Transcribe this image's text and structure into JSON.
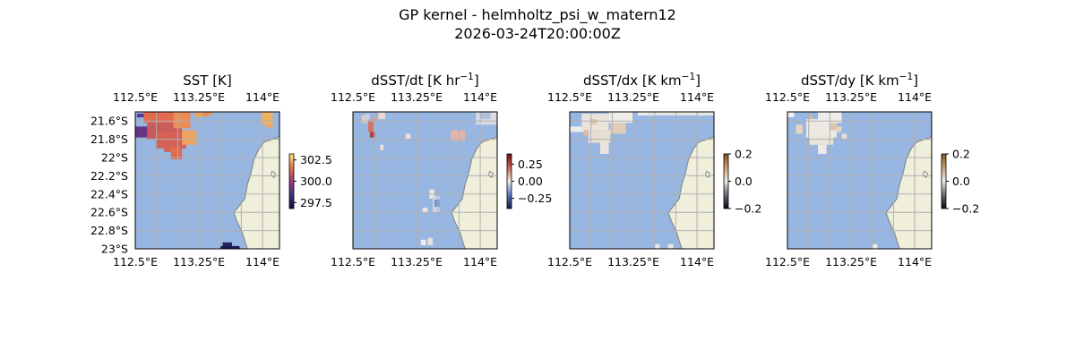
{
  "figure": {
    "title": "GP kernel - helmholtz_psi_w_matern12",
    "subtitle": "2026-03-24T20:00:00Z"
  },
  "colors": {
    "ocean": "#97b6e1",
    "land": "#efefdb",
    "coast": "#8a8a8a",
    "grid": "#b0b0b0"
  },
  "chart_data": [
    {
      "type": "heatmap",
      "title_text": "SST [K]",
      "title_sup": "",
      "title_suffix": "",
      "x_ticks_top": [
        "112.5°E",
        "113.25°E",
        "114°E"
      ],
      "x_ticks_bottom": [
        "112.5°E",
        "113.25°E",
        "114°E"
      ],
      "y_ticks": [
        "21.6°S",
        "21.8°S",
        "22°S",
        "22.2°S",
        "22.4°S",
        "22.6°S",
        "22.8°S",
        "23°S"
      ],
      "xlim": [
        112.5,
        114.2
      ],
      "ylim": [
        -23.0,
        -21.5
      ],
      "colorbar": {
        "colormap": "thermal",
        "ticks": [
          "302.5",
          "300.0",
          "297.5"
        ],
        "range": [
          296.8,
          303.2
        ],
        "tick_values": [
          302.5,
          300.0,
          297.5
        ]
      },
      "patches": [
        {
          "lon": [
            112.52,
            112.64
          ],
          "lat": [
            -21.52,
            -21.56
          ],
          "value": 298.8
        },
        {
          "lon": [
            112.5,
            112.72
          ],
          "lat": [
            -21.66,
            -21.78
          ],
          "value": 299.0
        },
        {
          "lon": [
            112.6,
            112.95
          ],
          "lat": [
            -21.5,
            -21.62
          ],
          "value": 301.5
        },
        {
          "lon": [
            112.64,
            113.05
          ],
          "lat": [
            -21.62,
            -21.8
          ],
          "value": 301.0
        },
        {
          "lon": [
            112.74,
            113.1
          ],
          "lat": [
            -21.72,
            -21.9
          ],
          "value": 301.2
        },
        {
          "lon": [
            112.95,
            113.15
          ],
          "lat": [
            -21.5,
            -21.68
          ],
          "value": 302.0
        },
        {
          "lon": [
            113.05,
            113.22
          ],
          "lat": [
            -21.7,
            -21.86
          ],
          "value": 302.3
        },
        {
          "lon": [
            112.92,
            113.05
          ],
          "lat": [
            -21.88,
            -22.02
          ],
          "value": 301.5
        },
        {
          "lon": [
            112.84,
            112.92
          ],
          "lat": [
            -21.86,
            -21.94
          ],
          "value": 301.2
        },
        {
          "lon": [
            113.2,
            113.3
          ],
          "lat": [
            -21.5,
            -21.56
          ],
          "value": 302.3
        },
        {
          "lon": [
            113.3,
            113.36
          ],
          "lat": [
            -21.5,
            -21.55
          ],
          "value": 302.0
        },
        {
          "lon": [
            113.36,
            113.41
          ],
          "lat": [
            -21.5,
            -21.54
          ],
          "value": 302.1
        },
        {
          "lon": [
            113.98,
            114.12
          ],
          "lat": [
            -21.5,
            -21.64
          ],
          "value": 302.5
        },
        {
          "lon": [
            114.05,
            114.12
          ],
          "lat": [
            -21.64,
            -21.68
          ],
          "value": 302.3
        },
        {
          "lon": [
            113.53,
            113.64
          ],
          "lat": [
            -22.93,
            -22.99
          ],
          "value": 297.5
        },
        {
          "lon": [
            113.5,
            113.73
          ],
          "lat": [
            -22.97,
            -23.0
          ],
          "value": 297.2
        }
      ]
    },
    {
      "type": "heatmap",
      "title_text": "dSST/dt [K hr",
      "title_sup": "−1",
      "title_suffix": "]",
      "x_ticks_top": [
        "112.5°E",
        "113.25°E",
        "114°E"
      ],
      "x_ticks_bottom": [
        "112.5°E",
        "113.25°E",
        "114°E"
      ],
      "y_ticks": [],
      "xlim": [
        112.5,
        114.2
      ],
      "ylim": [
        -23.0,
        -21.5
      ],
      "colorbar": {
        "colormap": "balance",
        "ticks": [
          "0.25",
          "0.00",
          "−0.25"
        ],
        "range": [
          -0.4,
          0.4
        ],
        "tick_values": [
          0.25,
          0.0,
          -0.25
        ]
      },
      "patches": [
        {
          "lon": [
            112.6,
            112.68
          ],
          "lat": [
            -21.54,
            -21.62
          ],
          "value": 0.05
        },
        {
          "lon": [
            112.68,
            112.74
          ],
          "lat": [
            -21.6,
            -21.72
          ],
          "value": 0.18
        },
        {
          "lon": [
            112.7,
            112.76
          ],
          "lat": [
            -21.72,
            -21.78
          ],
          "value": 0.28
        },
        {
          "lon": [
            112.8,
            112.88
          ],
          "lat": [
            -21.5,
            -21.58
          ],
          "value": 0.03
        },
        {
          "lon": [
            112.64,
            112.7
          ],
          "lat": [
            -21.52,
            -21.58
          ],
          "value": -0.05
        },
        {
          "lon": [
            112.72,
            112.78
          ],
          "lat": [
            -21.56,
            -21.6
          ],
          "value": 0.12
        },
        {
          "lon": [
            112.82,
            112.86
          ],
          "lat": [
            -21.86,
            -21.92
          ],
          "value": 0.02
        },
        {
          "lon": [
            113.12,
            113.18
          ],
          "lat": [
            -21.74,
            -21.8
          ],
          "value": 0.02
        },
        {
          "lon": [
            113.65,
            113.82
          ],
          "lat": [
            -21.7,
            -21.82
          ],
          "value": 0.08
        },
        {
          "lon": [
            113.95,
            114.2
          ],
          "lat": [
            -21.5,
            -21.64
          ],
          "value": -0.03
        },
        {
          "lon": [
            114.0,
            114.12
          ],
          "lat": [
            -21.5,
            -21.58
          ],
          "value": -0.08
        },
        {
          "lon": [
            113.4,
            113.46
          ],
          "lat": [
            -22.35,
            -22.45
          ],
          "value": 0.01
        },
        {
          "lon": [
            113.44,
            113.52
          ],
          "lat": [
            -22.42,
            -22.6
          ],
          "value": -0.04
        },
        {
          "lon": [
            113.46,
            113.52
          ],
          "lat": [
            -22.46,
            -22.54
          ],
          "value": -0.15
        },
        {
          "lon": [
            113.32,
            113.38
          ],
          "lat": [
            -22.55,
            -22.6
          ],
          "value": 0.01
        },
        {
          "lon": [
            113.38,
            113.44
          ],
          "lat": [
            -22.88,
            -22.96
          ],
          "value": 0.02
        },
        {
          "lon": [
            113.3,
            113.36
          ],
          "lat": [
            -22.9,
            -22.96
          ],
          "value": 0.0
        }
      ]
    },
    {
      "type": "heatmap",
      "title_text": "dSST/dx [K km",
      "title_sup": "−1",
      "title_suffix": "]",
      "x_ticks_top": [
        "112.5°E",
        "113.25°E",
        "114°E"
      ],
      "x_ticks_bottom": [
        "112.5°E",
        "113.25°E",
        "114°E"
      ],
      "y_ticks": [],
      "xlim": [
        112.5,
        114.2
      ],
      "ylim": [
        -23.0,
        -21.5
      ],
      "colorbar": {
        "colormap": "gray-copper",
        "ticks": [
          "0.2",
          "0.0",
          "−0.2"
        ],
        "range": [
          -0.2,
          0.2
        ],
        "tick_values": [
          0.2,
          0.0,
          -0.2
        ]
      },
      "patches": [
        {
          "lon": [
            112.5,
            112.68
          ],
          "lat": [
            -21.66,
            -21.72
          ],
          "value": 0.0
        },
        {
          "lon": [
            112.64,
            112.96
          ],
          "lat": [
            -21.52,
            -21.7
          ],
          "value": 0.01
        },
        {
          "lon": [
            112.72,
            112.98
          ],
          "lat": [
            -21.7,
            -21.84
          ],
          "value": 0.02
        },
        {
          "lon": [
            112.96,
            113.24
          ],
          "lat": [
            -21.5,
            -21.62
          ],
          "value": 0.0
        },
        {
          "lon": [
            112.98,
            113.16
          ],
          "lat": [
            -21.62,
            -21.74
          ],
          "value": 0.04
        },
        {
          "lon": [
            112.86,
            112.96
          ],
          "lat": [
            -21.82,
            -21.96
          ],
          "value": 0.01
        },
        {
          "lon": [
            112.74,
            112.82
          ],
          "lat": [
            -21.58,
            -21.64
          ],
          "value": 0.05
        },
        {
          "lon": [
            112.66,
            112.72
          ],
          "lat": [
            -21.7,
            -21.76
          ],
          "value": 0.06
        },
        {
          "lon": [
            113.3,
            113.42
          ],
          "lat": [
            -21.5,
            -21.54
          ],
          "value": 0.0
        },
        {
          "lon": [
            113.4,
            114.2
          ],
          "lat": [
            -21.5,
            -21.54
          ],
          "value": -0.005
        },
        {
          "lon": [
            113.5,
            113.56
          ],
          "lat": [
            -22.95,
            -23.0
          ],
          "value": 0.0
        },
        {
          "lon": [
            113.66,
            113.72
          ],
          "lat": [
            -22.95,
            -23.0
          ],
          "value": 0.0
        }
      ]
    },
    {
      "type": "heatmap",
      "title_text": "dSST/dy [K km",
      "title_sup": "−1",
      "title_suffix": "]",
      "x_ticks_top": [
        "112.5°E",
        "113.25°E",
        "114°E"
      ],
      "x_ticks_bottom": [
        "112.5°E",
        "113.25°E",
        "114°E"
      ],
      "y_ticks": [],
      "xlim": [
        112.5,
        114.2
      ],
      "ylim": [
        -23.0,
        -21.5
      ],
      "colorbar": {
        "colormap": "gray-copper",
        "ticks": [
          "0.2",
          "0.0",
          "−0.2"
        ],
        "range": [
          -0.2,
          0.2
        ],
        "tick_values": [
          0.2,
          0.0,
          -0.2
        ]
      },
      "patches": [
        {
          "lon": [
            112.5,
            112.58
          ],
          "lat": [
            -21.5,
            -21.56
          ],
          "value": 0.0
        },
        {
          "lon": [
            112.6,
            112.68
          ],
          "lat": [
            -21.64,
            -21.74
          ],
          "value": 0.03
        },
        {
          "lon": [
            112.72,
            113.08
          ],
          "lat": [
            -21.58,
            -21.78
          ],
          "value": 0.005
        },
        {
          "lon": [
            112.86,
            113.14
          ],
          "lat": [
            -21.5,
            -21.62
          ],
          "value": 0.0
        },
        {
          "lon": [
            112.76,
            113.04
          ],
          "lat": [
            -21.78,
            -21.86
          ],
          "value": 0.01
        },
        {
          "lon": [
            112.86,
            112.96
          ],
          "lat": [
            -21.86,
            -21.96
          ],
          "value": 0.0
        },
        {
          "lon": [
            113.0,
            113.08
          ],
          "lat": [
            -21.62,
            -21.7
          ],
          "value": 0.05
        },
        {
          "lon": [
            112.76,
            112.8
          ],
          "lat": [
            -21.54,
            -21.58
          ],
          "value": 0.07
        },
        {
          "lon": [
            113.08,
            113.14
          ],
          "lat": [
            -21.66,
            -21.72
          ],
          "value": 0.03
        },
        {
          "lon": [
            113.14,
            113.2
          ],
          "lat": [
            -21.74,
            -21.8
          ],
          "value": 0.02
        },
        {
          "lon": [
            113.5,
            113.56
          ],
          "lat": [
            -22.95,
            -23.0
          ],
          "value": 0.0
        }
      ]
    }
  ]
}
